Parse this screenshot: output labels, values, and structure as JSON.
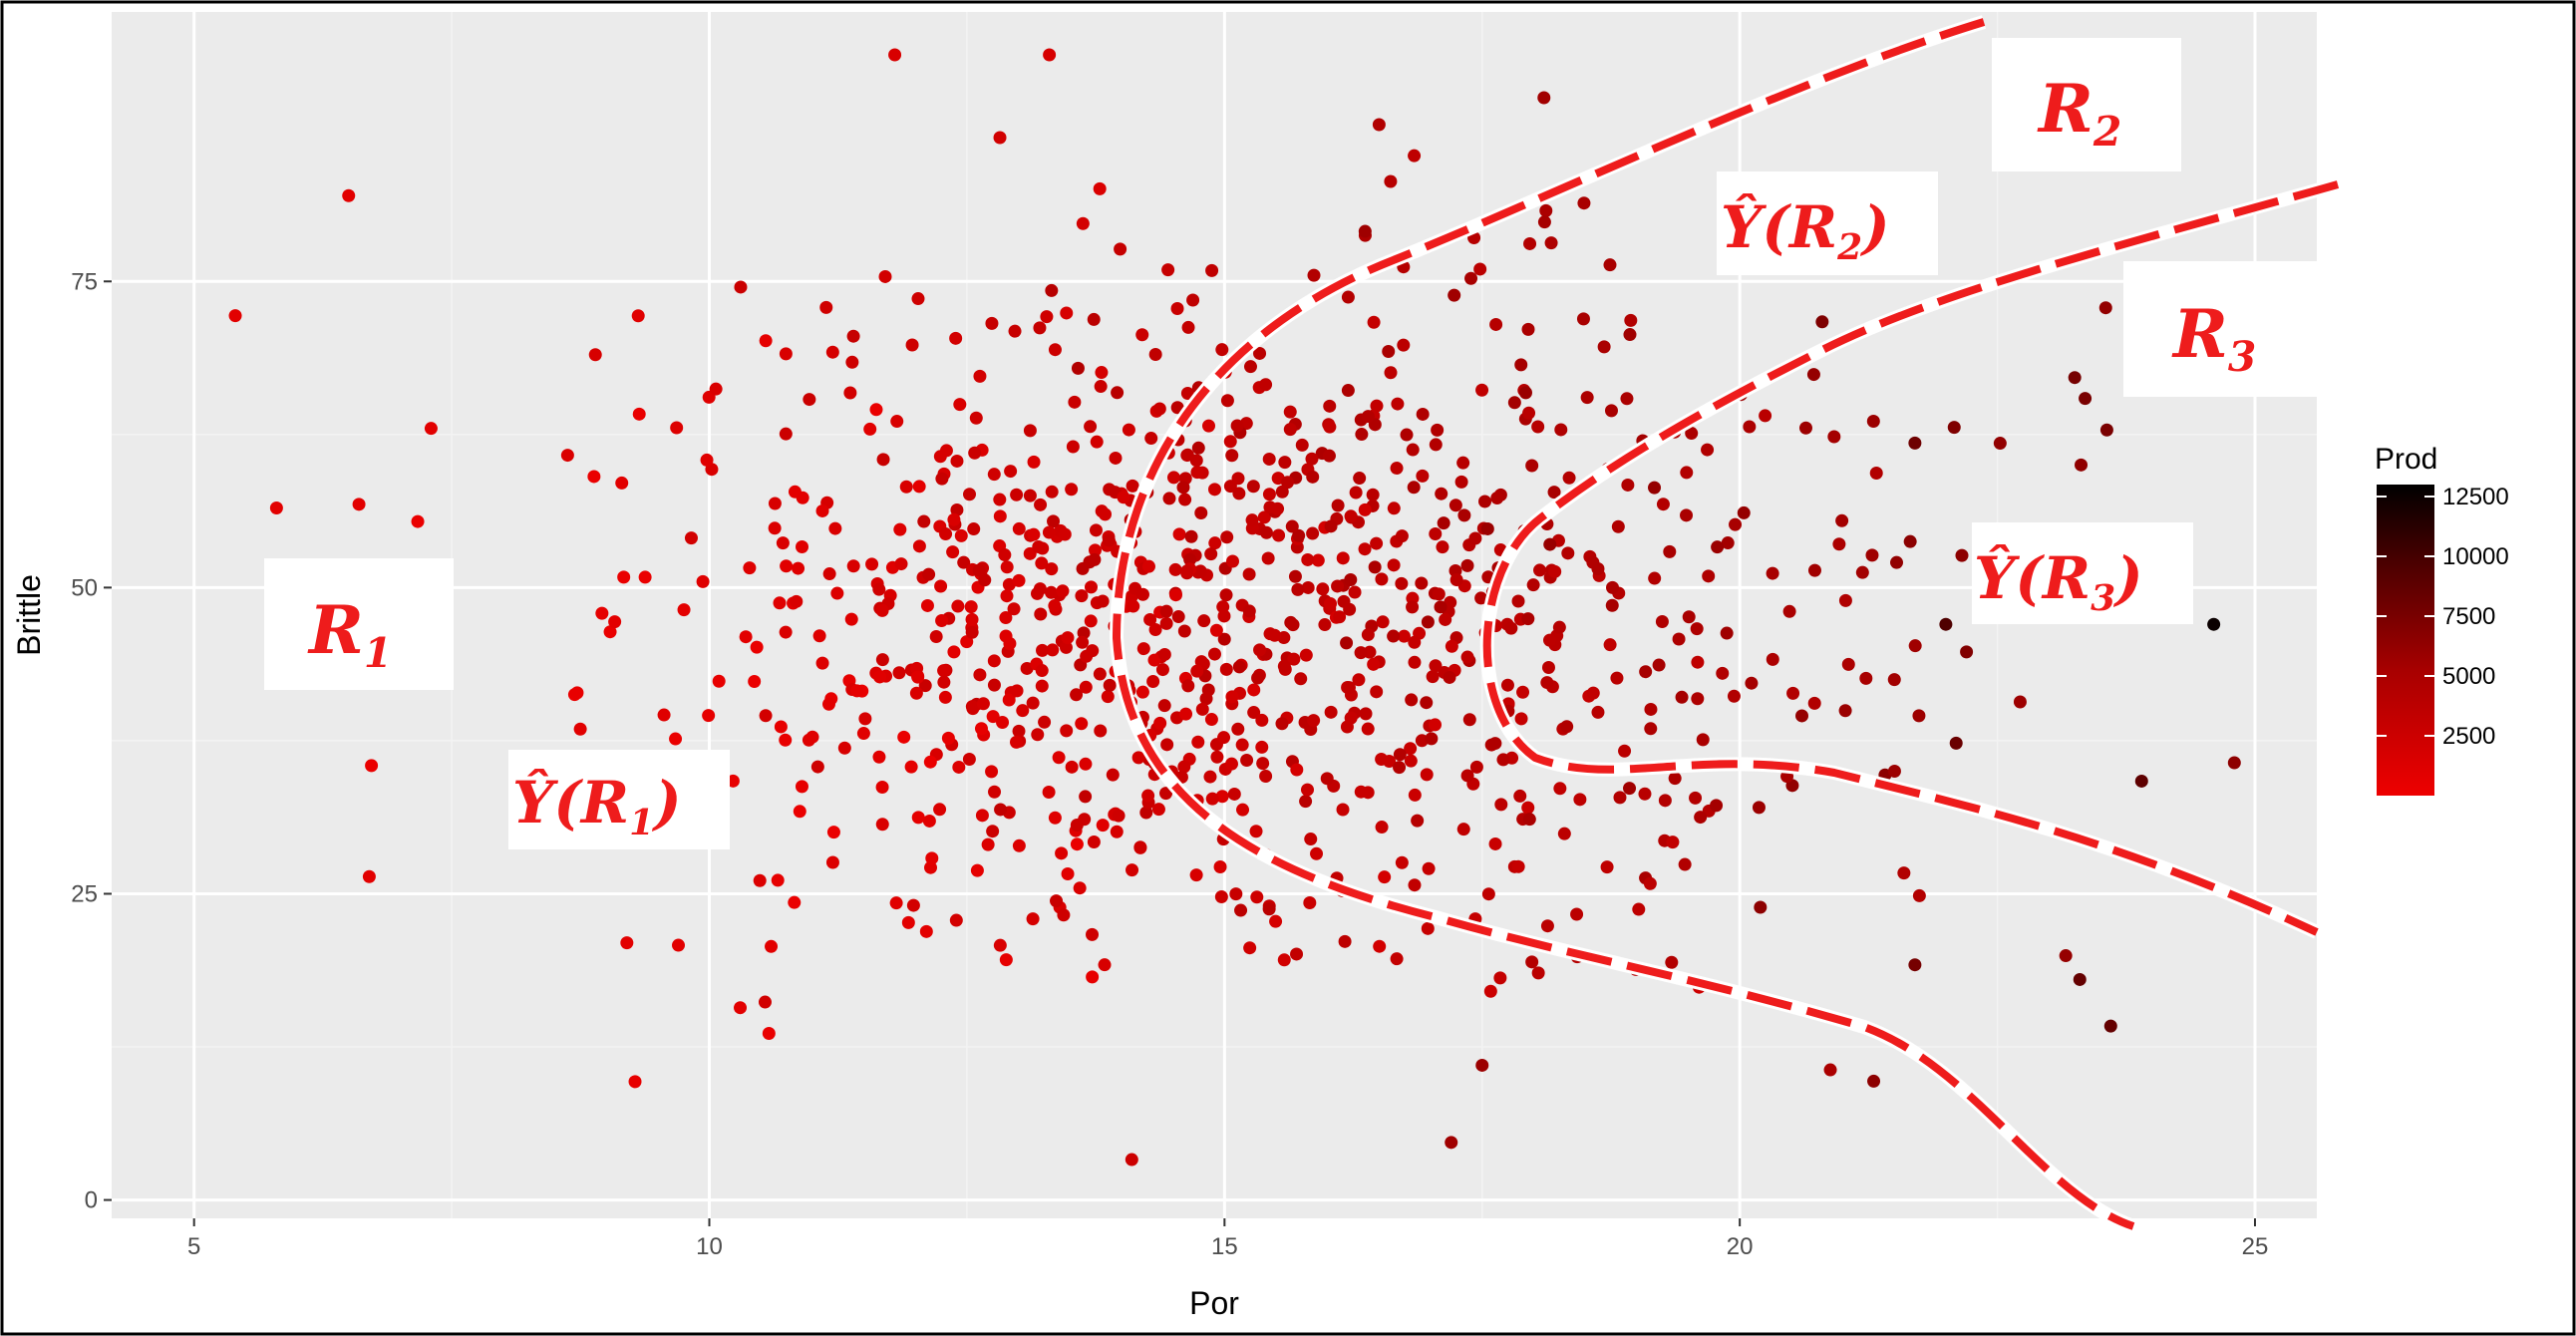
{
  "chart_data": {
    "type": "scatter",
    "xlabel": "Por",
    "ylabel": "Brittle",
    "xlim": [
      4.2,
      25.6
    ],
    "ylim": [
      -1.5,
      97
    ],
    "x_ticks": [
      5,
      10,
      15,
      20,
      25
    ],
    "y_ticks": [
      0,
      25,
      50,
      75
    ],
    "x_tick_labels": [
      "5",
      "10",
      "15",
      "20",
      "25"
    ],
    "y_tick_labels": [
      "0",
      "25",
      "50",
      "75"
    ],
    "grid": true,
    "legend": {
      "title": "Prod",
      "placement": "right",
      "ticks": [
        2500,
        5000,
        7500,
        10000,
        12500
      ],
      "tick_labels": [
        "2500",
        "5000",
        "7500",
        "10000",
        "12500"
      ],
      "range": [
        0,
        13000
      ],
      "colors": [
        "#ee0000",
        "#000000"
      ]
    },
    "highlight_points": [
      {
        "x": 5.4,
        "y": 72.2,
        "prod": 900
      },
      {
        "x": 6.5,
        "y": 82.0,
        "prod": 900
      },
      {
        "x": 6.6,
        "y": 56.8,
        "prod": 900
      },
      {
        "x": 6.7,
        "y": 26.4,
        "prod": 900
      },
      {
        "x": 7.3,
        "y": 63.0,
        "prod": 900
      },
      {
        "x": 5.8,
        "y": 56.5,
        "prod": 900
      },
      {
        "x": 9.2,
        "y": 21.0,
        "prod": 900
      },
      {
        "x": 9.7,
        "y": 20.8,
        "prod": 900
      },
      {
        "x": 10.3,
        "y": 15.7,
        "prod": 900
      },
      {
        "x": 10.6,
        "y": 20.7,
        "prod": 900
      },
      {
        "x": 11.8,
        "y": 93.5,
        "prod": 1600
      },
      {
        "x": 13.3,
        "y": 93.5,
        "prod": 1800
      },
      {
        "x": 14.1,
        "y": 3.3,
        "prod": 2500
      },
      {
        "x": 17.2,
        "y": 4.7,
        "prod": 5600
      },
      {
        "x": 17.5,
        "y": 11.0,
        "prod": 5800
      },
      {
        "x": 18.1,
        "y": 90.0,
        "prod": 5500
      },
      {
        "x": 16.5,
        "y": 87.8,
        "prod": 4500
      },
      {
        "x": 21.3,
        "y": 9.7,
        "prod": 6500
      },
      {
        "x": 23.3,
        "y": 18.0,
        "prod": 8500
      },
      {
        "x": 23.6,
        "y": 14.2,
        "prod": 8500
      },
      {
        "x": 23.9,
        "y": 34.2,
        "prod": 8800
      },
      {
        "x": 24.6,
        "y": 47.0,
        "prod": 12500
      },
      {
        "x": 22.0,
        "y": 47.0,
        "prod": 9500
      },
      {
        "x": 21.7,
        "y": 61.8,
        "prod": 8000
      },
      {
        "x": 21.7,
        "y": 19.2,
        "prod": 7600
      },
      {
        "x": 20.8,
        "y": 71.7,
        "prod": 7200
      },
      {
        "x": 20.2,
        "y": 23.9,
        "prod": 6500
      },
      {
        "x": 22.1,
        "y": 37.3,
        "prod": 8200
      }
    ],
    "random_seed": 7,
    "annotations": {
      "r1": {
        "base": "R",
        "sub": "1"
      },
      "y_r1": {
        "text": "Ŷ(R",
        "sub": "1",
        "close": ")"
      },
      "r2": {
        "base": "R",
        "sub": "2"
      },
      "y_r2": {
        "text": "Ŷ(R",
        "sub": "2",
        "close": ")"
      },
      "r3": {
        "base": "R",
        "sub": "3"
      },
      "y_r3": {
        "text": "Ŷ(R",
        "sub": "3",
        "close": ")"
      }
    },
    "colors": {
      "panel": "#ebebeb",
      "grid_major": "#ffffff",
      "grid_minor": "#f3f3f3",
      "boundary": "#ee1c1c",
      "label": "#ee1c1c"
    }
  }
}
